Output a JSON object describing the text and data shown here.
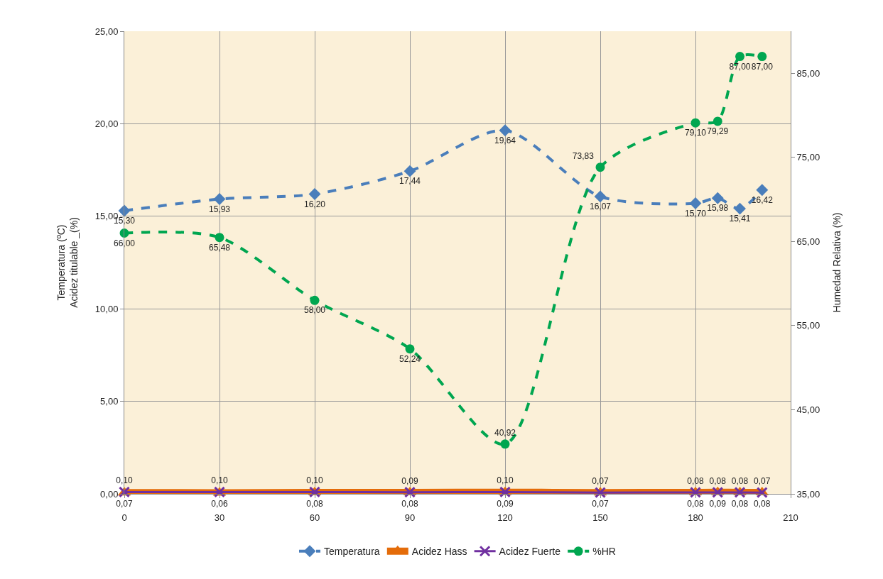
{
  "chart_data": {
    "type": "line",
    "ylabel": "Temperatura (ºC)\nAcidez titulable _(%)",
    "y2label": "Humedad Relativa (%)",
    "x": [
      0,
      30,
      60,
      90,
      120,
      150,
      180,
      187,
      194,
      201
    ],
    "xlim": [
      0,
      210
    ],
    "xticks": [
      0,
      30,
      60,
      90,
      120,
      150,
      180,
      210
    ],
    "ylim": [
      0,
      25
    ],
    "yticks": [
      {
        "value": 0,
        "label": "0,00"
      },
      {
        "value": 5,
        "label": "5,00"
      },
      {
        "value": 10,
        "label": "10,00"
      },
      {
        "value": 15,
        "label": "15,00"
      },
      {
        "value": 20,
        "label": "20,00"
      },
      {
        "value": 25,
        "label": "25,00"
      }
    ],
    "y2lim": [
      35,
      90
    ],
    "y2ticks": [
      {
        "value": 35,
        "label": "35,00"
      },
      {
        "value": 45,
        "label": "45,00"
      },
      {
        "value": 55,
        "label": "55,00"
      },
      {
        "value": 65,
        "label": "65,00"
      },
      {
        "value": 75,
        "label": "75,00"
      },
      {
        "value": 85,
        "label": "85,00"
      }
    ],
    "grid": true,
    "legend": "bottom",
    "series": [
      {
        "name": "Temperatura",
        "color": "#4a7ebb",
        "marker": "diamond",
        "line_style": "dashed",
        "values": [
          15.3,
          15.93,
          16.2,
          17.44,
          19.64,
          16.07,
          15.7,
          15.98,
          15.41,
          16.42
        ],
        "value_labels": [
          "15,30",
          "15,93",
          "16,20",
          "17,44",
          "19,64",
          "16,07",
          "15,70",
          "15,98",
          "15,41",
          "16,42"
        ]
      },
      {
        "name": "Acidez Hass",
        "color": "#e46c0a",
        "marker": "triangle",
        "line_style": "solid",
        "values": [
          0.07,
          0.06,
          0.08,
          0.08,
          0.09,
          0.07,
          0.08,
          0.09,
          0.08,
          0.08
        ],
        "value_labels": [
          "0,07",
          "0,06",
          "0,08",
          "0,08",
          "0,09",
          "0,07",
          "0,08",
          "0,09",
          "0,08",
          "0,08"
        ]
      },
      {
        "name": "Acidez Fuerte",
        "color": "#7030a0",
        "marker": "cross",
        "line_style": "solid",
        "values": [
          0.1,
          0.1,
          0.1,
          0.09,
          0.1,
          0.07,
          0.08,
          0.08,
          0.08,
          0.07
        ],
        "value_labels": [
          "0,10",
          "0,10",
          "0,10",
          "0,09",
          "0,10",
          "0,07",
          "0,08",
          "0,08",
          "0,08",
          "0,07"
        ]
      },
      {
        "name": "%HR",
        "color": "#00a650",
        "marker": "circle",
        "line_style": "dashed",
        "axis": "y2",
        "values": [
          66.0,
          65.48,
          58.0,
          52.24,
          40.92,
          73.83,
          79.1,
          79.29,
          87.0,
          87.0
        ],
        "value_labels": [
          "66,00",
          "65,48",
          "58,00",
          "52,24",
          "40,92",
          "73,83",
          "79,10",
          "79,29",
          "87,00",
          "87,00"
        ]
      }
    ]
  }
}
